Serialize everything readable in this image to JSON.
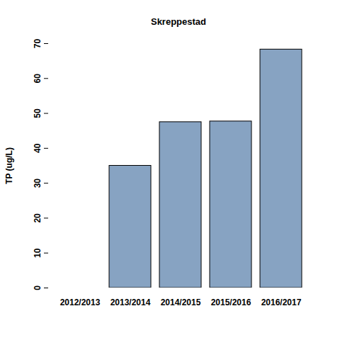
{
  "chart_data": {
    "type": "bar",
    "title": "Skreppestad",
    "y_label": "TP (ug/L)",
    "categories": [
      "2012/2013",
      "2013/2014",
      "2014/2015",
      "2015/2016",
      "2016/2017"
    ],
    "values": [
      null,
      35.0,
      47.5,
      47.7,
      68.3
    ],
    "color": "#87a3c2",
    "ylim": [
      0,
      70
    ],
    "yticks": [
      0,
      10,
      20,
      30,
      40,
      50,
      60,
      70
    ],
    "grid": false
  }
}
